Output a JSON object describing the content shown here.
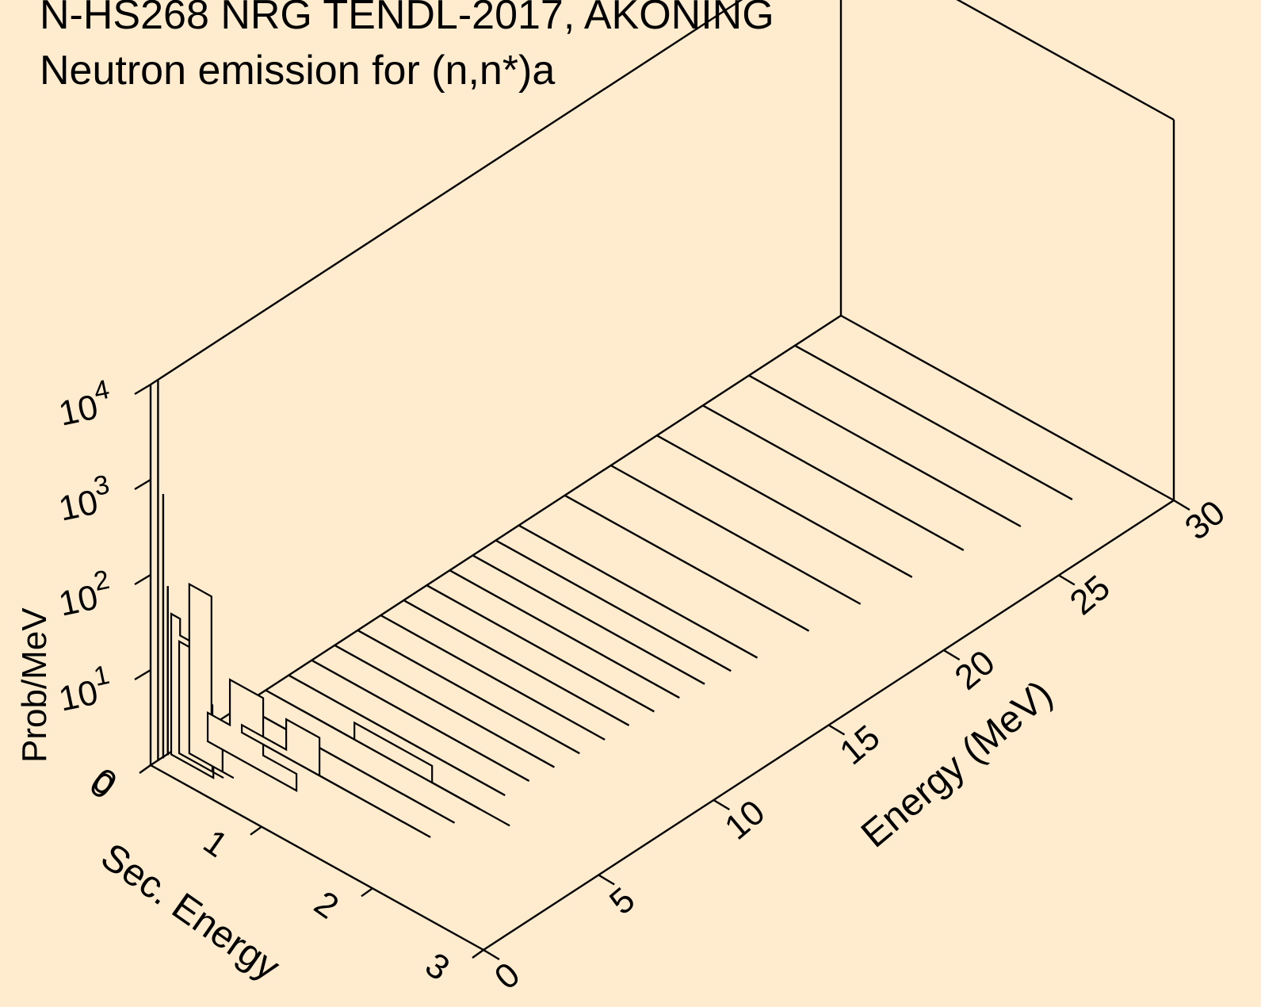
{
  "chart_data": {
    "type": "surface-3d",
    "title": "N-HS268 NRG TENDL-2017, AKONING",
    "subtitle": "Neutron emission for (n,n*)a",
    "zlabel": "Prob/MeV",
    "xlabel": "Sec. Energy",
    "ylabel": "Energy (MeV)",
    "x_range": [
      0,
      3
    ],
    "y_range": [
      0,
      30
    ],
    "z_scale": "log",
    "x_ticks": [
      "0",
      "1",
      "2",
      "3"
    ],
    "y_ticks": [
      "0",
      "5",
      "10",
      "15",
      "20",
      "25",
      "30"
    ],
    "z_ticks": [
      {
        "base": "10",
        "exp": "1"
      },
      {
        "base": "10",
        "exp": "2"
      },
      {
        "base": "10",
        "exp": "3"
      },
      {
        "base": "10",
        "exp": "4"
      }
    ],
    "z_zero_label": "0",
    "incident_energies_mev": [
      3,
      4,
      5,
      6,
      7,
      8,
      9,
      10,
      11,
      12,
      13,
      14,
      15,
      16,
      18,
      20,
      22,
      24,
      26,
      28
    ],
    "trace_end_sec_energy": [
      1.9,
      1.91,
      1.93,
      1.95,
      1.96,
      1.98,
      2.0,
      2.02,
      2.03,
      2.05,
      2.07,
      2.09,
      2.12,
      2.15,
      2.2,
      2.25,
      2.3,
      2.35,
      2.45,
      2.5
    ],
    "spectra": [
      {
        "incident_energy_mev": 0.3,
        "sec_energy": [
          0.005
        ],
        "prob": [
          10000
        ]
      },
      {
        "incident_energy_mev": 0.5,
        "sec_energy": [
          0.01
        ],
        "prob": [
          600
        ]
      },
      {
        "incident_energy_mev": 0.7,
        "sec_energy": [
          0.01
        ],
        "prob": [
          60
        ]
      },
      {
        "incident_energy_mev": 0.8,
        "sec_energy": [
          0.02,
          0.1,
          0.2,
          0.3
        ],
        "prob": [
          30,
          20,
          8,
          2
        ]
      },
      {
        "incident_energy_mev": 1.0,
        "sec_energy": [
          0.05,
          0.15,
          0.25,
          0.35
        ],
        "prob": [
          15,
          10,
          5,
          1
        ]
      },
      {
        "incident_energy_mev": 1.2,
        "sec_energy": [
          0.1,
          0.3,
          0.4
        ],
        "prob": [
          60,
          3,
          1
        ]
      },
      {
        "incident_energy_mev": 2.0,
        "sec_energy": [
          0.1,
          0.3,
          0.6
        ],
        "prob": [
          2,
          6,
          1.5
        ]
      },
      {
        "incident_energy_mev": 3.0,
        "sec_energy": [
          0.2,
          0.6,
          0.9
        ],
        "prob": [
          1.2,
          2.5,
          0.6
        ]
      },
      {
        "incident_energy_mev": 5.0,
        "sec_energy": [
          0.3,
          0.8,
          1.5
        ],
        "prob": [
          1,
          1.5,
          0.6
        ]
      }
    ]
  }
}
